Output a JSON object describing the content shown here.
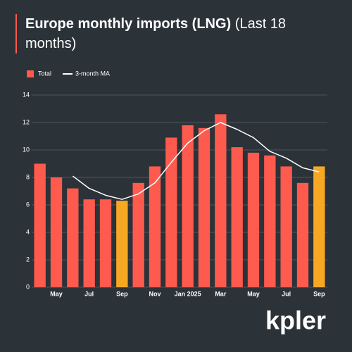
{
  "chart_data": {
    "type": "bar",
    "title": "Europe monthly imports (LNG)",
    "subtitle": "(Last 18 months)",
    "categories": [
      null,
      "May",
      null,
      "Jul",
      null,
      "Sep",
      null,
      "Nov",
      null,
      "Jan 2025",
      null,
      "Mar",
      null,
      "May",
      null,
      "Jul",
      null,
      "Sep"
    ],
    "series": [
      {
        "name": "Total",
        "type": "bar",
        "color": "#ff5a4e",
        "colors": [
          "#ff5a4e",
          "#ff5a4e",
          "#ff5a4e",
          "#ff5a4e",
          "#ff5a4e",
          "#f7a823",
          "#ff5a4e",
          "#ff5a4e",
          "#ff5a4e",
          "#ff5a4e",
          "#ff5a4e",
          "#ff5a4e",
          "#ff5a4e",
          "#ff5a4e",
          "#ff5a4e",
          "#ff5a4e",
          "#ff5a4e",
          "#f7a823"
        ],
        "values": [
          9.0,
          8.0,
          7.2,
          6.4,
          6.4,
          6.3,
          7.6,
          8.8,
          10.9,
          11.8,
          11.6,
          12.6,
          10.2,
          9.8,
          9.6,
          8.8,
          7.6,
          8.8
        ]
      },
      {
        "name": "3-month MA",
        "type": "line",
        "color": "#ffffff",
        "values": [
          null,
          null,
          8.1,
          7.2,
          6.7,
          6.4,
          6.8,
          7.6,
          9.1,
          10.5,
          11.4,
          12.0,
          11.5,
          10.9,
          9.9,
          9.4,
          8.7,
          8.4
        ]
      }
    ],
    "ylim": [
      0,
      14
    ],
    "yticks": [
      0,
      2,
      4,
      6,
      8,
      10,
      12,
      14
    ],
    "grid": true,
    "brand": "kpler"
  }
}
